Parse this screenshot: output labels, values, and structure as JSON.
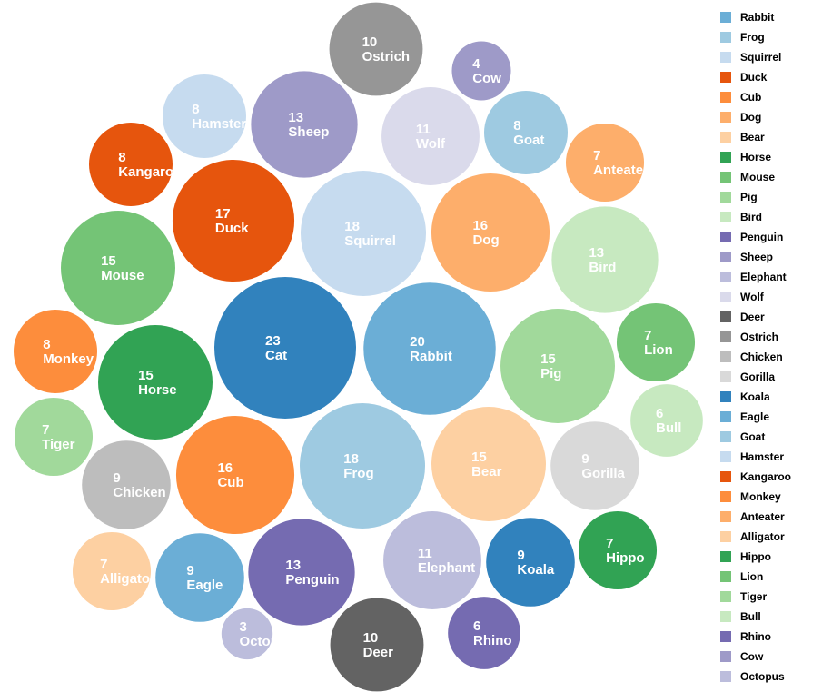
{
  "chart_data": {
    "type": "bubble",
    "title": "",
    "legend_position": "right",
    "bubbles": [
      {
        "name": "Cat",
        "value": 23,
        "color": "#3182bd"
      },
      {
        "name": "Rabbit",
        "value": 20,
        "color": "#6baed6"
      },
      {
        "name": "Squirrel",
        "value": 18,
        "color": "#c6dbef"
      },
      {
        "name": "Frog",
        "value": 18,
        "color": "#9ecae1"
      },
      {
        "name": "Duck",
        "value": 17,
        "color": "#e6550d"
      },
      {
        "name": "Dog",
        "value": 16,
        "color": "#fdae6b"
      },
      {
        "name": "Cub",
        "value": 16,
        "color": "#fd8d3c"
      },
      {
        "name": "Horse",
        "value": 15,
        "color": "#31a354"
      },
      {
        "name": "Mouse",
        "value": 15,
        "color": "#74c476"
      },
      {
        "name": "Pig",
        "value": 15,
        "color": "#a1d99b"
      },
      {
        "name": "Bear",
        "value": 15,
        "color": "#fdd0a2"
      },
      {
        "name": "Sheep",
        "value": 13,
        "color": "#9e9ac8"
      },
      {
        "name": "Bird",
        "value": 13,
        "color": "#c7e9c0"
      },
      {
        "name": "Penguin",
        "value": 13,
        "color": "#756bb1"
      },
      {
        "name": "Wolf",
        "value": 11,
        "color": "#dadaeb"
      },
      {
        "name": "Elephant",
        "value": 11,
        "color": "#bcbddc"
      },
      {
        "name": "Ostrich",
        "value": 10,
        "color": "#969696"
      },
      {
        "name": "Deer",
        "value": 10,
        "color": "#636363"
      },
      {
        "name": "Chicken",
        "value": 9,
        "color": "#bdbdbd"
      },
      {
        "name": "Gorilla",
        "value": 9,
        "color": "#d9d9d9"
      },
      {
        "name": "Koala",
        "value": 9,
        "color": "#3182bd"
      },
      {
        "name": "Eagle",
        "value": 9,
        "color": "#6baed6"
      },
      {
        "name": "Goat",
        "value": 8,
        "color": "#9ecae1"
      },
      {
        "name": "Hamster",
        "value": 8,
        "color": "#c6dbef"
      },
      {
        "name": "Kangaroo",
        "value": 8,
        "color": "#e6550d"
      },
      {
        "name": "Monkey",
        "value": 8,
        "color": "#fd8d3c"
      },
      {
        "name": "Anteater",
        "value": 7,
        "color": "#fdae6b"
      },
      {
        "name": "Lion",
        "value": 7,
        "color": "#74c476"
      },
      {
        "name": "Tiger",
        "value": 7,
        "color": "#a1d99b"
      },
      {
        "name": "Alligator",
        "value": 7,
        "color": "#fdd0a2"
      },
      {
        "name": "Hippo",
        "value": 7,
        "color": "#31a354"
      },
      {
        "name": "Bull",
        "value": 6,
        "color": "#c7e9c0"
      },
      {
        "name": "Rhino",
        "value": 6,
        "color": "#756bb1"
      },
      {
        "name": "Cow",
        "value": 4,
        "color": "#9e9ac8"
      },
      {
        "name": "Octopus",
        "value": 3,
        "color": "#bcbddc"
      }
    ],
    "legend": [
      {
        "name": "Rabbit",
        "color": "#6baed6"
      },
      {
        "name": "Frog",
        "color": "#9ecae1"
      },
      {
        "name": "Squirrel",
        "color": "#c6dbef"
      },
      {
        "name": "Duck",
        "color": "#e6550d"
      },
      {
        "name": "Cub",
        "color": "#fd8d3c"
      },
      {
        "name": "Dog",
        "color": "#fdae6b"
      },
      {
        "name": "Bear",
        "color": "#fdd0a2"
      },
      {
        "name": "Horse",
        "color": "#31a354"
      },
      {
        "name": "Mouse",
        "color": "#74c476"
      },
      {
        "name": "Pig",
        "color": "#a1d99b"
      },
      {
        "name": "Bird",
        "color": "#c7e9c0"
      },
      {
        "name": "Penguin",
        "color": "#756bb1"
      },
      {
        "name": "Sheep",
        "color": "#9e9ac8"
      },
      {
        "name": "Elephant",
        "color": "#bcbddc"
      },
      {
        "name": "Wolf",
        "color": "#dadaeb"
      },
      {
        "name": "Deer",
        "color": "#636363"
      },
      {
        "name": "Ostrich",
        "color": "#969696"
      },
      {
        "name": "Chicken",
        "color": "#bdbdbd"
      },
      {
        "name": "Gorilla",
        "color": "#d9d9d9"
      },
      {
        "name": "Koala",
        "color": "#3182bd"
      },
      {
        "name": "Eagle",
        "color": "#6baed6"
      },
      {
        "name": "Goat",
        "color": "#9ecae1"
      },
      {
        "name": "Hamster",
        "color": "#c6dbef"
      },
      {
        "name": "Kangaroo",
        "color": "#e6550d"
      },
      {
        "name": "Monkey",
        "color": "#fd8d3c"
      },
      {
        "name": "Anteater",
        "color": "#fdae6b"
      },
      {
        "name": "Alligator",
        "color": "#fdd0a2"
      },
      {
        "name": "Hippo",
        "color": "#31a354"
      },
      {
        "name": "Lion",
        "color": "#74c476"
      },
      {
        "name": "Tiger",
        "color": "#a1d99b"
      },
      {
        "name": "Bull",
        "color": "#c7e9c0"
      },
      {
        "name": "Rhino",
        "color": "#756bb1"
      },
      {
        "name": "Cow",
        "color": "#9e9ac8"
      },
      {
        "name": "Octopus",
        "color": "#bcbddc"
      }
    ]
  }
}
